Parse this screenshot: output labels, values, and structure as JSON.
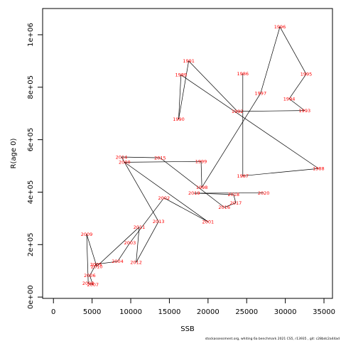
{
  "chart_data": {
    "type": "line",
    "xlabel": "SSB",
    "ylabel": "R(age 0)",
    "xlim": [
      -1400,
      36100
    ],
    "ylim": [
      -5000,
      1100000
    ],
    "x_ticks": [
      0,
      5000,
      10000,
      15000,
      20000,
      25000,
      30000,
      35000
    ],
    "x_tick_labels": [
      "0",
      "5000",
      "10000",
      "15000",
      "20000",
      "25000",
      "30000",
      "35000"
    ],
    "y_ticks": [
      0,
      200000,
      400000,
      600000,
      800000,
      1000000
    ],
    "y_tick_labels": [
      "0e+00",
      "2e+05",
      "4e+05",
      "6e+05",
      "8e+05",
      "1e+06"
    ],
    "grid": false,
    "line_color": "#000000",
    "label_color": "#ff0000",
    "points": [
      {
        "label": "1986",
        "x": 24500,
        "y": 852000
      },
      {
        "label": "1987",
        "x": 24500,
        "y": 462000
      },
      {
        "label": "1988",
        "x": 34300,
        "y": 490000
      },
      {
        "label": "1989",
        "x": 16500,
        "y": 847000
      },
      {
        "label": "1990",
        "x": 16200,
        "y": 678000
      },
      {
        "label": "1991",
        "x": 17500,
        "y": 900000
      },
      {
        "label": "1992",
        "x": 23800,
        "y": 708000
      },
      {
        "label": "1993",
        "x": 32500,
        "y": 711000
      },
      {
        "label": "1994",
        "x": 30500,
        "y": 756000
      },
      {
        "label": "1995",
        "x": 32700,
        "y": 850000
      },
      {
        "label": "1996",
        "x": 29300,
        "y": 1030000
      },
      {
        "label": "1997",
        "x": 26800,
        "y": 777000
      },
      {
        "label": "1998",
        "x": 19200,
        "y": 418000
      },
      {
        "label": "1999",
        "x": 19100,
        "y": 517000
      },
      {
        "label": "2000",
        "x": 9200,
        "y": 514000
      },
      {
        "label": "2001",
        "x": 20000,
        "y": 287000
      },
      {
        "label": "2002",
        "x": 14300,
        "y": 378000
      },
      {
        "label": "2003",
        "x": 9900,
        "y": 207000
      },
      {
        "label": "2004",
        "x": 8300,
        "y": 136000
      },
      {
        "label": "2005",
        "x": 5500,
        "y": 125000
      },
      {
        "label": "2006",
        "x": 4700,
        "y": 82000
      },
      {
        "label": "2007",
        "x": 5100,
        "y": 47000
      },
      {
        "label": "2008",
        "x": 4500,
        "y": 53000
      },
      {
        "label": "2009",
        "x": 4300,
        "y": 239000
      },
      {
        "label": "2010",
        "x": 5600,
        "y": 117000
      },
      {
        "label": "2011",
        "x": 11100,
        "y": 267000
      },
      {
        "label": "2012",
        "x": 10700,
        "y": 132000
      },
      {
        "label": "2013",
        "x": 13600,
        "y": 288000
      },
      {
        "label": "2014",
        "x": 8800,
        "y": 534000
      },
      {
        "label": "2015",
        "x": 13800,
        "y": 531000
      },
      {
        "label": "2016",
        "x": 22100,
        "y": 342000
      },
      {
        "label": "2017",
        "x": 23600,
        "y": 359000
      },
      {
        "label": "2018",
        "x": 23300,
        "y": 391000
      },
      {
        "label": "2019",
        "x": 18200,
        "y": 396000
      },
      {
        "label": "2020",
        "x": 27200,
        "y": 397000
      }
    ]
  },
  "footer_text": "stockassessment.org,  whiting  6a  benchmark  2021  CS5,  r13935 ,  git: c28bdc2a44ad"
}
